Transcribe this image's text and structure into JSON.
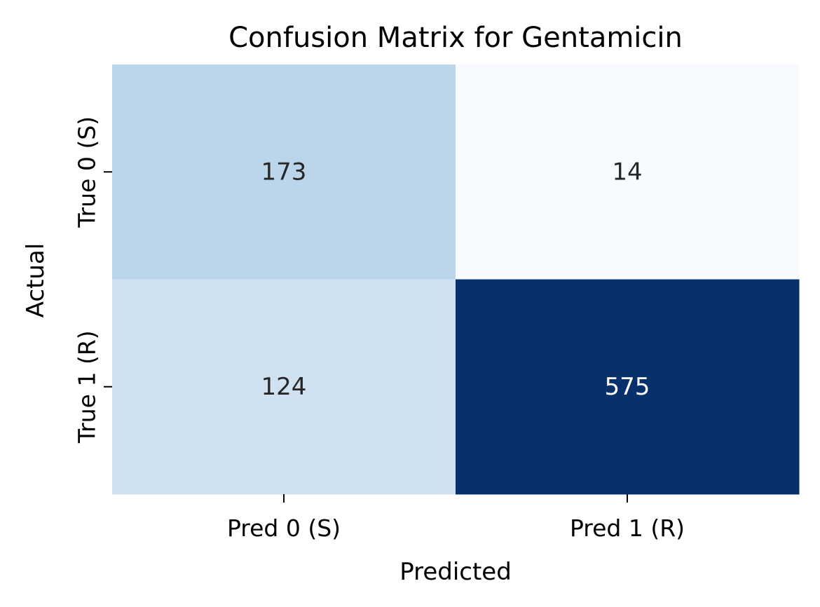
{
  "chart_data": {
    "type": "heatmap",
    "title": "Confusion Matrix for Gentamicin",
    "xlabel": "Predicted",
    "ylabel": "Actual",
    "x_categories": [
      "Pred 0 (S)",
      "Pred 1 (R)"
    ],
    "y_categories": [
      "True 0 (S)",
      "True 1 (R)"
    ],
    "values": [
      [
        173,
        14
      ],
      [
        124,
        575
      ]
    ],
    "colormap": "Blues",
    "colorbar": false,
    "grid": false
  }
}
